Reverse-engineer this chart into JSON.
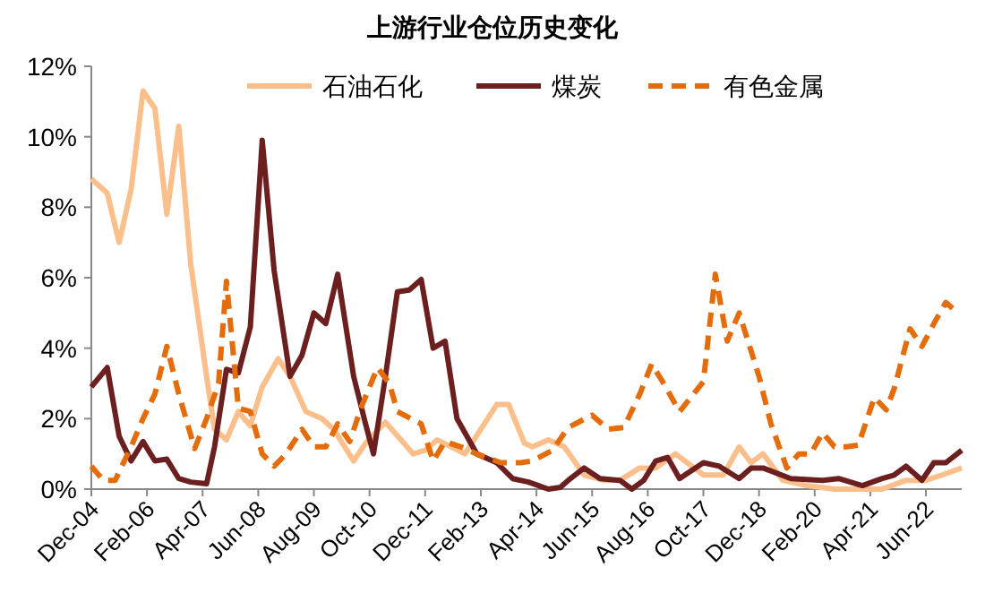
{
  "chart_data": {
    "type": "line",
    "title": "上游行业仓位历史变化",
    "legend": "top",
    "grid": false,
    "xlim": [
      "2004-12",
      "2023-03"
    ],
    "xticks": [
      {
        "value": "2004-12",
        "label": "Dec-04"
      },
      {
        "value": "2006-02",
        "label": "Feb-06"
      },
      {
        "value": "2007-04",
        "label": "Apr-07"
      },
      {
        "value": "2008-06",
        "label": "Jun-08"
      },
      {
        "value": "2009-08",
        "label": "Aug-09"
      },
      {
        "value": "2010-10",
        "label": "Oct-10"
      },
      {
        "value": "2011-12",
        "label": "Dec-11"
      },
      {
        "value": "2013-02",
        "label": "Feb-13"
      },
      {
        "value": "2014-04",
        "label": "Apr-14"
      },
      {
        "value": "2015-06",
        "label": "Jun-15"
      },
      {
        "value": "2016-08",
        "label": "Aug-16"
      },
      {
        "value": "2017-10",
        "label": "Oct-17"
      },
      {
        "value": "2018-12",
        "label": "Dec-18"
      },
      {
        "value": "2020-02",
        "label": "Feb-20"
      },
      {
        "value": "2021-04",
        "label": "Apr-21"
      },
      {
        "value": "2022-06",
        "label": "Jun-22"
      }
    ],
    "ylim": [
      0,
      12
    ],
    "yticks": [
      {
        "value": 0,
        "label": "0%"
      },
      {
        "value": 2,
        "label": "2%"
      },
      {
        "value": 4,
        "label": "4%"
      },
      {
        "value": 6,
        "label": "6%"
      },
      {
        "value": 8,
        "label": "8%"
      },
      {
        "value": 10,
        "label": "10%"
      },
      {
        "value": 12,
        "label": "12%"
      }
    ],
    "series": [
      {
        "name": "石油石化",
        "color": "#fbbf8c",
        "line_style": "solid",
        "x": [
          "2004-12",
          "2005-04",
          "2005-07",
          "2005-10",
          "2006-01",
          "2006-04",
          "2006-07",
          "2006-10",
          "2007-01",
          "2007-05",
          "2007-07",
          "2007-10",
          "2008-01",
          "2008-04",
          "2008-07",
          "2008-11",
          "2009-02",
          "2009-06",
          "2009-10",
          "2010-01",
          "2010-06",
          "2010-09",
          "2011-02",
          "2011-09",
          "2011-12",
          "2012-03",
          "2012-10",
          "2013-06",
          "2013-09",
          "2014-01",
          "2014-03",
          "2014-07",
          "2014-11",
          "2015-04",
          "2015-09",
          "2016-01",
          "2016-06",
          "2016-10",
          "2017-03",
          "2017-10",
          "2018-03",
          "2018-07",
          "2018-10",
          "2019-01",
          "2019-06",
          "2019-12",
          "2020-07",
          "2021-01",
          "2021-07",
          "2022-01",
          "2022-06",
          "2022-10",
          "2023-03"
        ],
        "values": [
          8.8,
          8.4,
          7.0,
          8.5,
          11.3,
          10.8,
          7.8,
          10.3,
          6.4,
          3.2,
          1.7,
          1.4,
          2.2,
          1.8,
          2.9,
          3.7,
          3.2,
          2.2,
          2.0,
          1.7,
          0.8,
          1.3,
          1.9,
          1.0,
          1.1,
          1.4,
          1.0,
          2.4,
          2.4,
          1.3,
          1.2,
          1.4,
          1.2,
          0.4,
          0.25,
          0.25,
          0.6,
          0.6,
          1.0,
          0.4,
          0.4,
          1.2,
          0.75,
          1.0,
          0.25,
          0.1,
          0,
          0,
          0,
          0.25,
          0.25,
          0.4,
          0.6
        ]
      },
      {
        "name": "煤炭",
        "color": "#6b1f1f",
        "line_style": "solid",
        "x": [
          "2004-12",
          "2005-04",
          "2005-07",
          "2005-10",
          "2006-01",
          "2006-04",
          "2006-07",
          "2006-10",
          "2007-01",
          "2007-05",
          "2007-07",
          "2007-10",
          "2008-01",
          "2008-04",
          "2008-07",
          "2008-10",
          "2009-02",
          "2009-05",
          "2009-08",
          "2009-11",
          "2010-02",
          "2010-06",
          "2010-09",
          "2010-11",
          "2011-02",
          "2011-05",
          "2011-08",
          "2011-11",
          "2012-02",
          "2012-05",
          "2012-08",
          "2013-01",
          "2013-06",
          "2013-10",
          "2014-02",
          "2014-07",
          "2014-10",
          "2014-12",
          "2015-04",
          "2015-08",
          "2016-01",
          "2016-04",
          "2016-07",
          "2016-10",
          "2017-01",
          "2017-04",
          "2017-10",
          "2018-02",
          "2018-07",
          "2018-10",
          "2019-01",
          "2019-08",
          "2020-04",
          "2020-08",
          "2021-02",
          "2021-07",
          "2021-10",
          "2022-01",
          "2022-05",
          "2022-08",
          "2022-11",
          "2023-03"
        ],
        "values": [
          2.9,
          3.45,
          1.5,
          0.8,
          1.35,
          0.8,
          0.85,
          0.3,
          0.2,
          0.15,
          1.2,
          3.4,
          3.3,
          4.6,
          9.9,
          6.2,
          3.2,
          3.8,
          5.0,
          4.7,
          6.1,
          3.2,
          1.85,
          1.0,
          3.2,
          5.6,
          5.65,
          5.95,
          4.0,
          4.2,
          2.0,
          1.0,
          0.75,
          0.3,
          0.2,
          0,
          0.05,
          0.25,
          0.6,
          0.3,
          0.25,
          0,
          0.25,
          0.8,
          0.9,
          0.3,
          0.75,
          0.65,
          0.3,
          0.6,
          0.6,
          0.3,
          0.25,
          0.3,
          0.1,
          0.3,
          0.4,
          0.65,
          0.25,
          0.75,
          0.75,
          1.1
        ]
      },
      {
        "name": "有色金属",
        "color": "#e46c0a",
        "line_style": "dashed",
        "x": [
          "2004-12",
          "2005-03",
          "2005-06",
          "2005-10",
          "2006-01",
          "2006-04",
          "2006-07",
          "2006-10",
          "2007-02",
          "2007-05",
          "2007-08",
          "2007-10",
          "2008-01",
          "2008-04",
          "2008-07",
          "2008-10",
          "2009-01",
          "2009-05",
          "2009-08",
          "2009-11",
          "2010-02",
          "2010-05",
          "2010-08",
          "2010-12",
          "2011-03",
          "2011-05",
          "2011-11",
          "2012-02",
          "2012-05",
          "2012-09",
          "2013-01",
          "2013-07",
          "2013-12",
          "2014-03",
          "2014-08",
          "2014-12",
          "2015-06",
          "2015-10",
          "2016-02",
          "2016-06",
          "2016-09",
          "2016-12",
          "2017-04",
          "2017-10",
          "2018-01",
          "2018-04",
          "2018-07",
          "2018-12",
          "2019-03",
          "2019-07",
          "2019-10",
          "2020-01",
          "2020-04",
          "2020-07",
          "2020-10",
          "2021-01",
          "2021-05",
          "2021-08",
          "2021-10",
          "2022-02",
          "2022-05",
          "2022-08",
          "2022-11",
          "2023-01"
        ],
        "values": [
          0.65,
          0.25,
          0.25,
          1.2,
          2.0,
          2.7,
          4.05,
          2.7,
          1.15,
          2.0,
          3.0,
          5.9,
          2.3,
          2.2,
          1.0,
          0.65,
          1.0,
          1.7,
          1.2,
          1.2,
          1.85,
          1.35,
          2.35,
          3.45,
          3.0,
          2.2,
          1.85,
          0.8,
          1.35,
          1.2,
          1.0,
          0.75,
          0.75,
          0.8,
          1.1,
          1.75,
          2.1,
          1.7,
          1.75,
          2.7,
          3.55,
          3.0,
          2.2,
          3.05,
          6.1,
          4.2,
          5.0,
          3.2,
          1.85,
          0.6,
          1.0,
          1.0,
          1.6,
          1.2,
          1.2,
          1.25,
          2.6,
          2.25,
          2.85,
          4.55,
          4.05,
          4.7,
          5.3,
          5.1
        ]
      }
    ]
  }
}
